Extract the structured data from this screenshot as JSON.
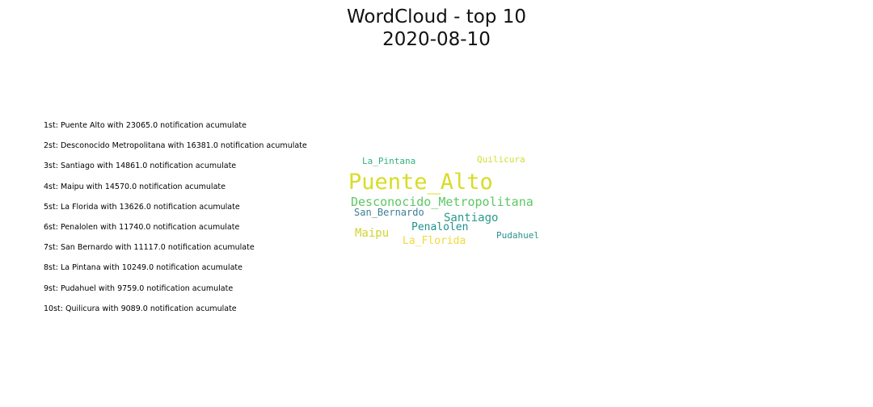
{
  "title_line1": "WordCloud - top 10",
  "title_line2": "2020-08-10",
  "ranking": [
    "1st: Puente Alto with 23065.0 notification acumulate",
    "2st: Desconocido Metropolitana with 16381.0 notification acumulate",
    "3st: Santiago with 14861.0 notification acumulate",
    "4st: Maipu with 14570.0 notification acumulate",
    "5st: La Florida with 13626.0 notification acumulate",
    "6st: Penalolen with 11740.0 notification acumulate",
    "7st: San Bernardo with 11117.0 notification acumulate",
    "8st: La Pintana with 10249.0 notification acumulate",
    "9st: Pudahuel with 9759.0 notification acumulate",
    "10st: Quilicura with 9089.0 notification acumulate"
  ],
  "chart_data": {
    "type": "wordcloud",
    "title": "WordCloud - top 10",
    "subtitle": "2020-08-10",
    "words": [
      {
        "text": "Puente_Alto",
        "value": 23065.0,
        "color": "#d8dc26"
      },
      {
        "text": "Desconocido_Metropolitana",
        "value": 16381.0,
        "color": "#5cc863"
      },
      {
        "text": "Santiago",
        "value": 14861.0,
        "color": "#2a9a8a"
      },
      {
        "text": "Maipu",
        "value": 14570.0,
        "color": "#d0d52e"
      },
      {
        "text": "La_Florida",
        "value": 13626.0,
        "color": "#f1da3f"
      },
      {
        "text": "Penalolen",
        "value": 11740.0,
        "color": "#21908d"
      },
      {
        "text": "San_Bernardo",
        "value": 11117.0,
        "color": "#3d7e95"
      },
      {
        "text": "La_Pintana",
        "value": 10249.0,
        "color": "#2fb27c"
      },
      {
        "text": "Pudahuel",
        "value": 9759.0,
        "color": "#27928c"
      },
      {
        "text": "Quilicura",
        "value": 9089.0,
        "color": "#d2df32"
      }
    ]
  }
}
